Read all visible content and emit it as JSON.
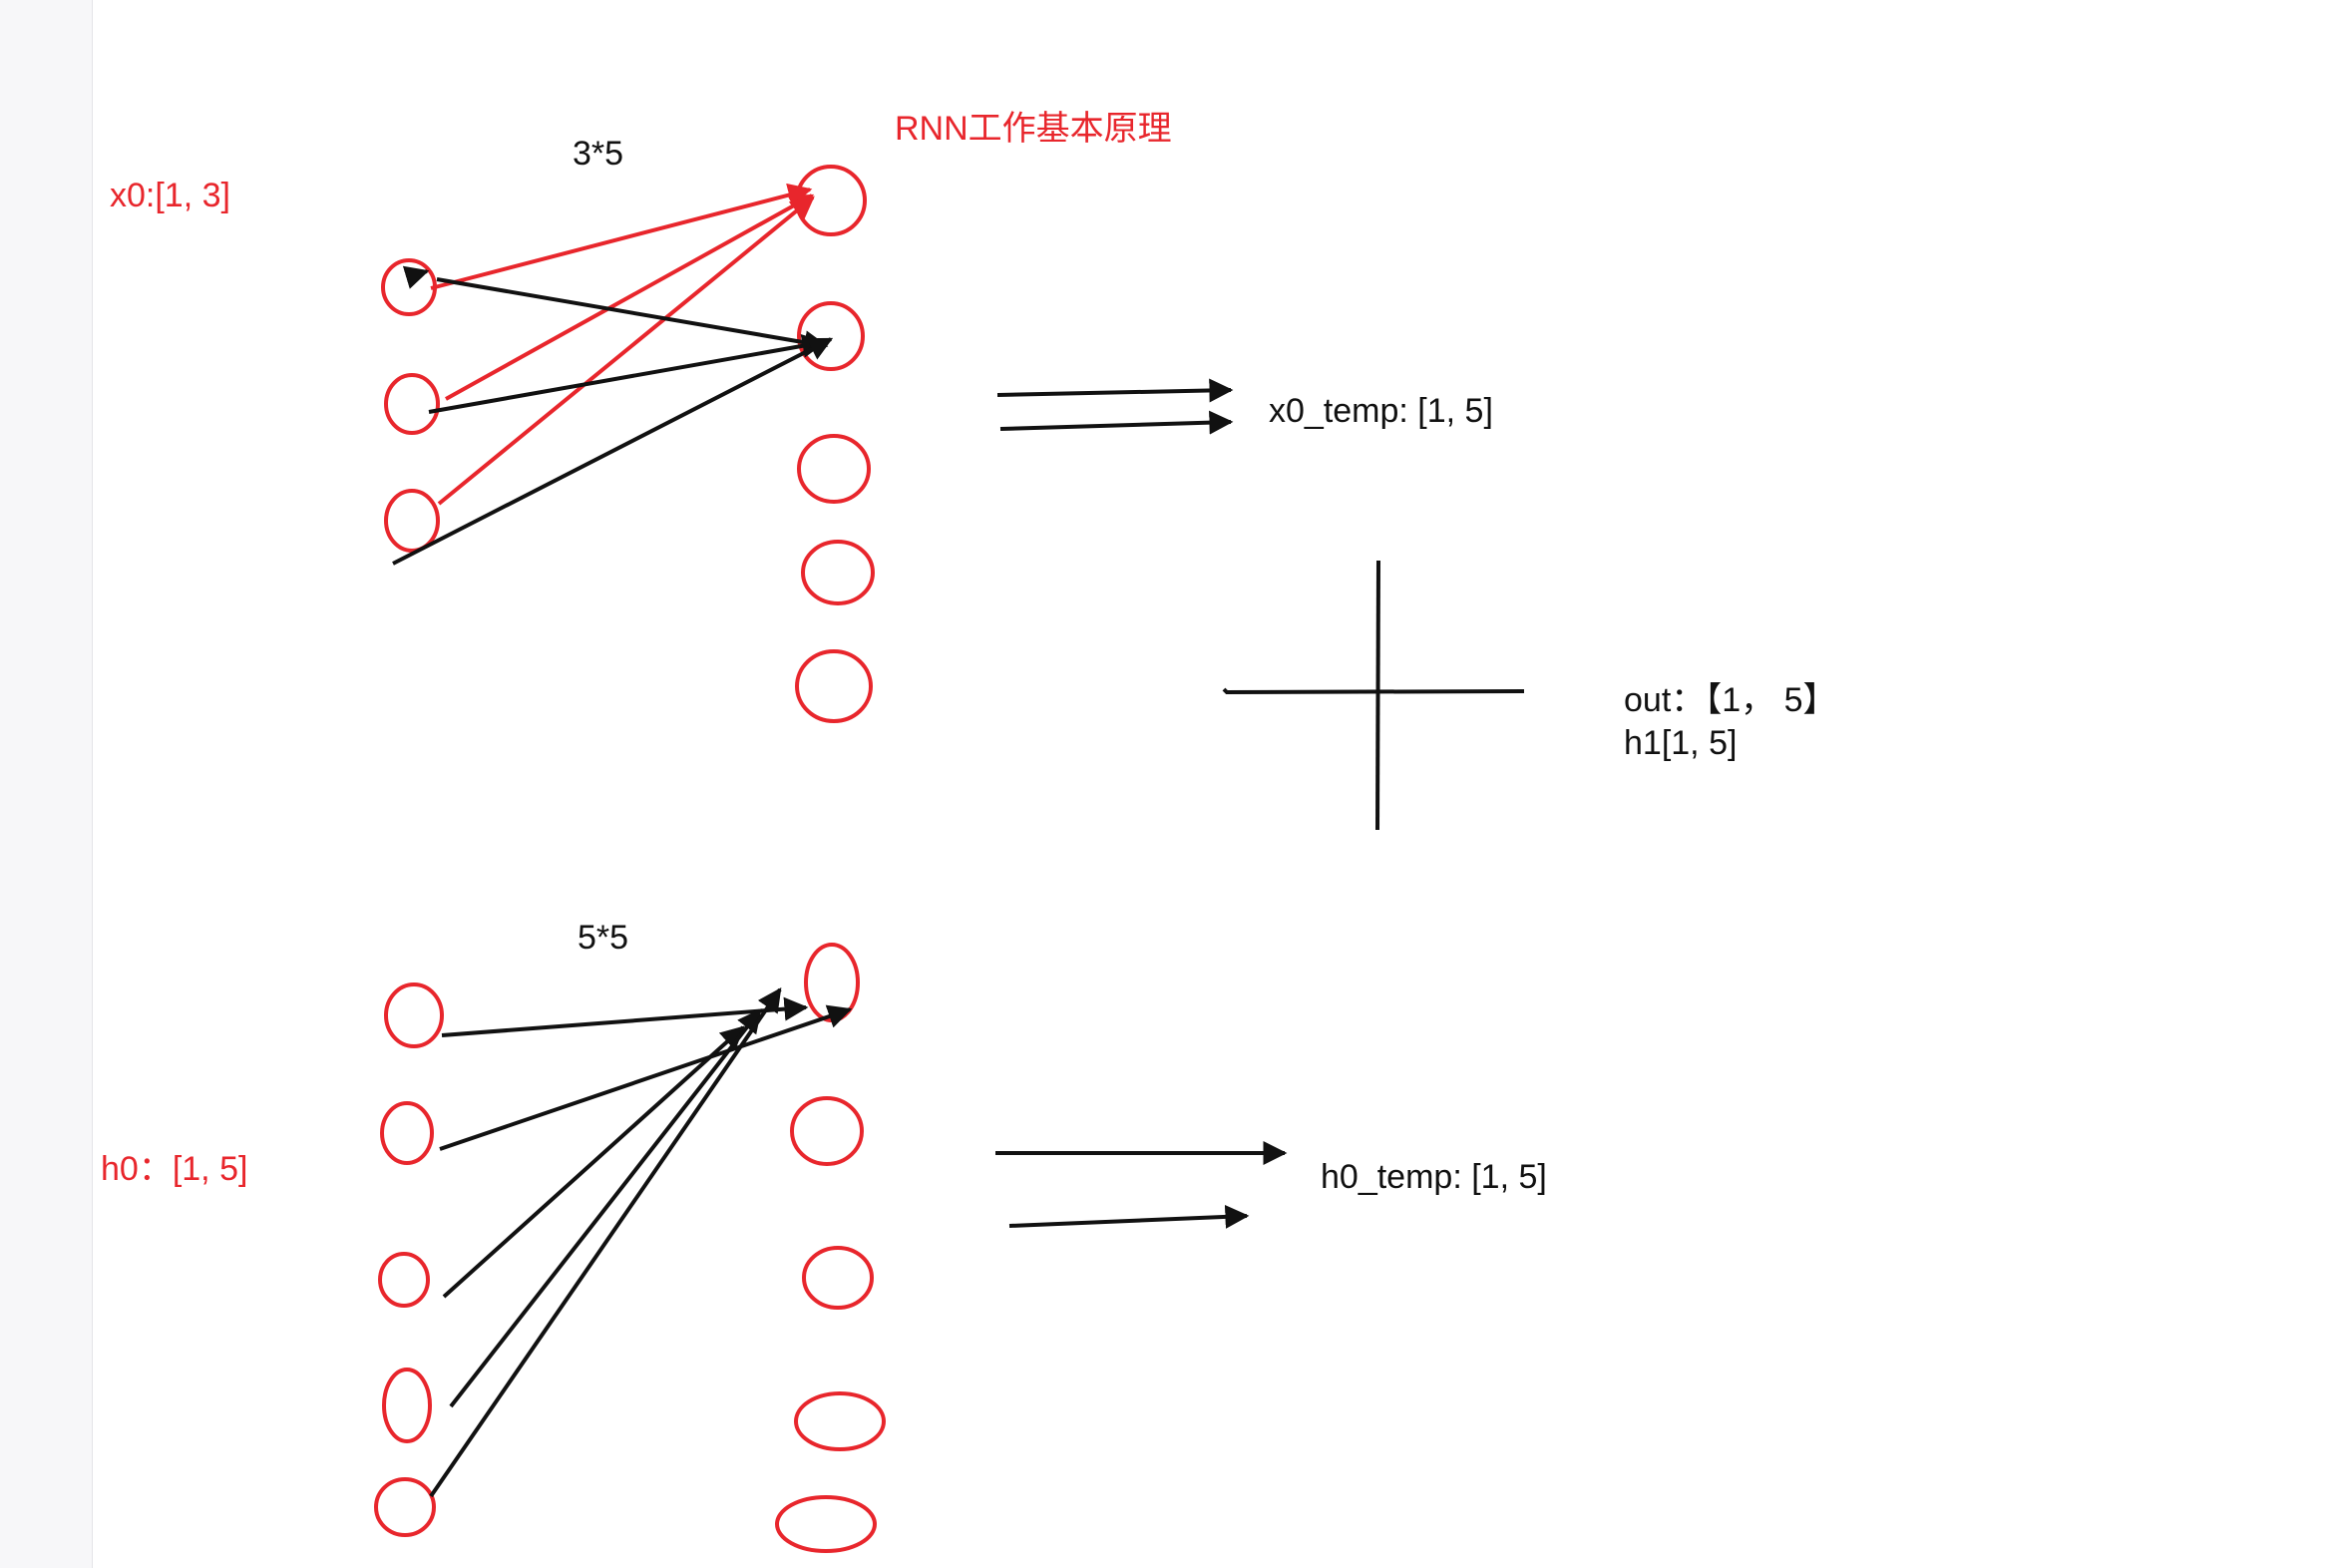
{
  "title": "RNN工作基本原理",
  "input_label": "x0:[1, 3]",
  "hidden_label": "h0：[1, 5]",
  "weight_top": "3*5",
  "weight_bottom": "5*5",
  "x_temp_label": "x0_temp: [1, 5]",
  "h_temp_label": "h0_temp: [1, 5]",
  "out_label": "out：【1，  5】",
  "h1_label": "h1[1, 5]",
  "colors": {
    "accent": "#e8262c",
    "ink": "#111111"
  }
}
